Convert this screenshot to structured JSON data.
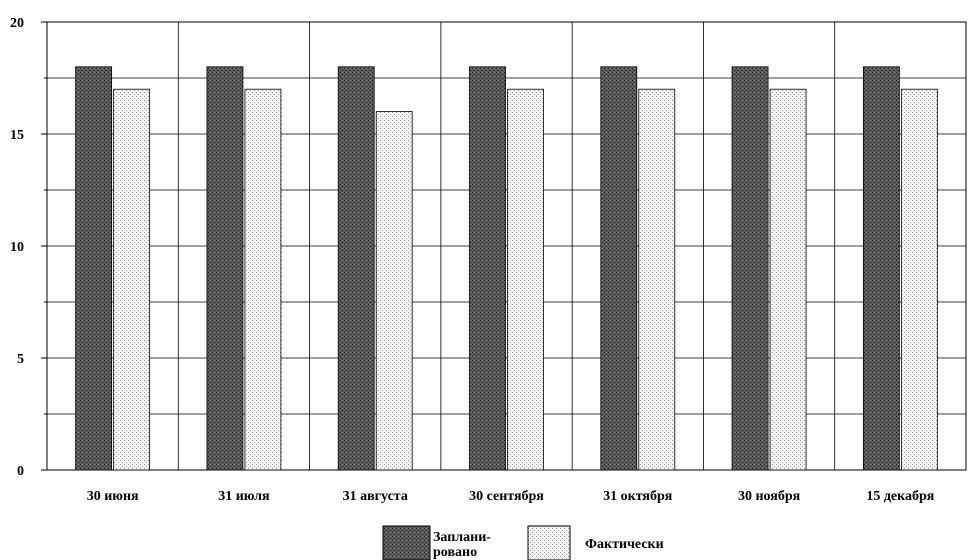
{
  "chart_data": {
    "type": "bar",
    "categories": [
      "30 июня",
      "31 июля",
      "31 августа",
      "30 сентября",
      "31 октября",
      "30 ноября",
      "15 декабря"
    ],
    "series": [
      {
        "name": "Заплани-рованo",
        "values": [
          18,
          18,
          18,
          18,
          18,
          18,
          18
        ]
      },
      {
        "name": "Фактически",
        "values": [
          17,
          17,
          16,
          17,
          17,
          17,
          17
        ]
      }
    ],
    "ylim": [
      0,
      20
    ],
    "yticks": [
      "0",
      "5",
      "10",
      "15",
      "20"
    ],
    "grid": true,
    "legend_position": "bottom",
    "legend": {
      "planned_line1": "Заплани-",
      "planned_line2": "рованo",
      "actual": "Фактически"
    },
    "colors": {
      "planned": "#4a4a4a",
      "actual": "#e6e6e6",
      "grid": "#000000"
    }
  }
}
